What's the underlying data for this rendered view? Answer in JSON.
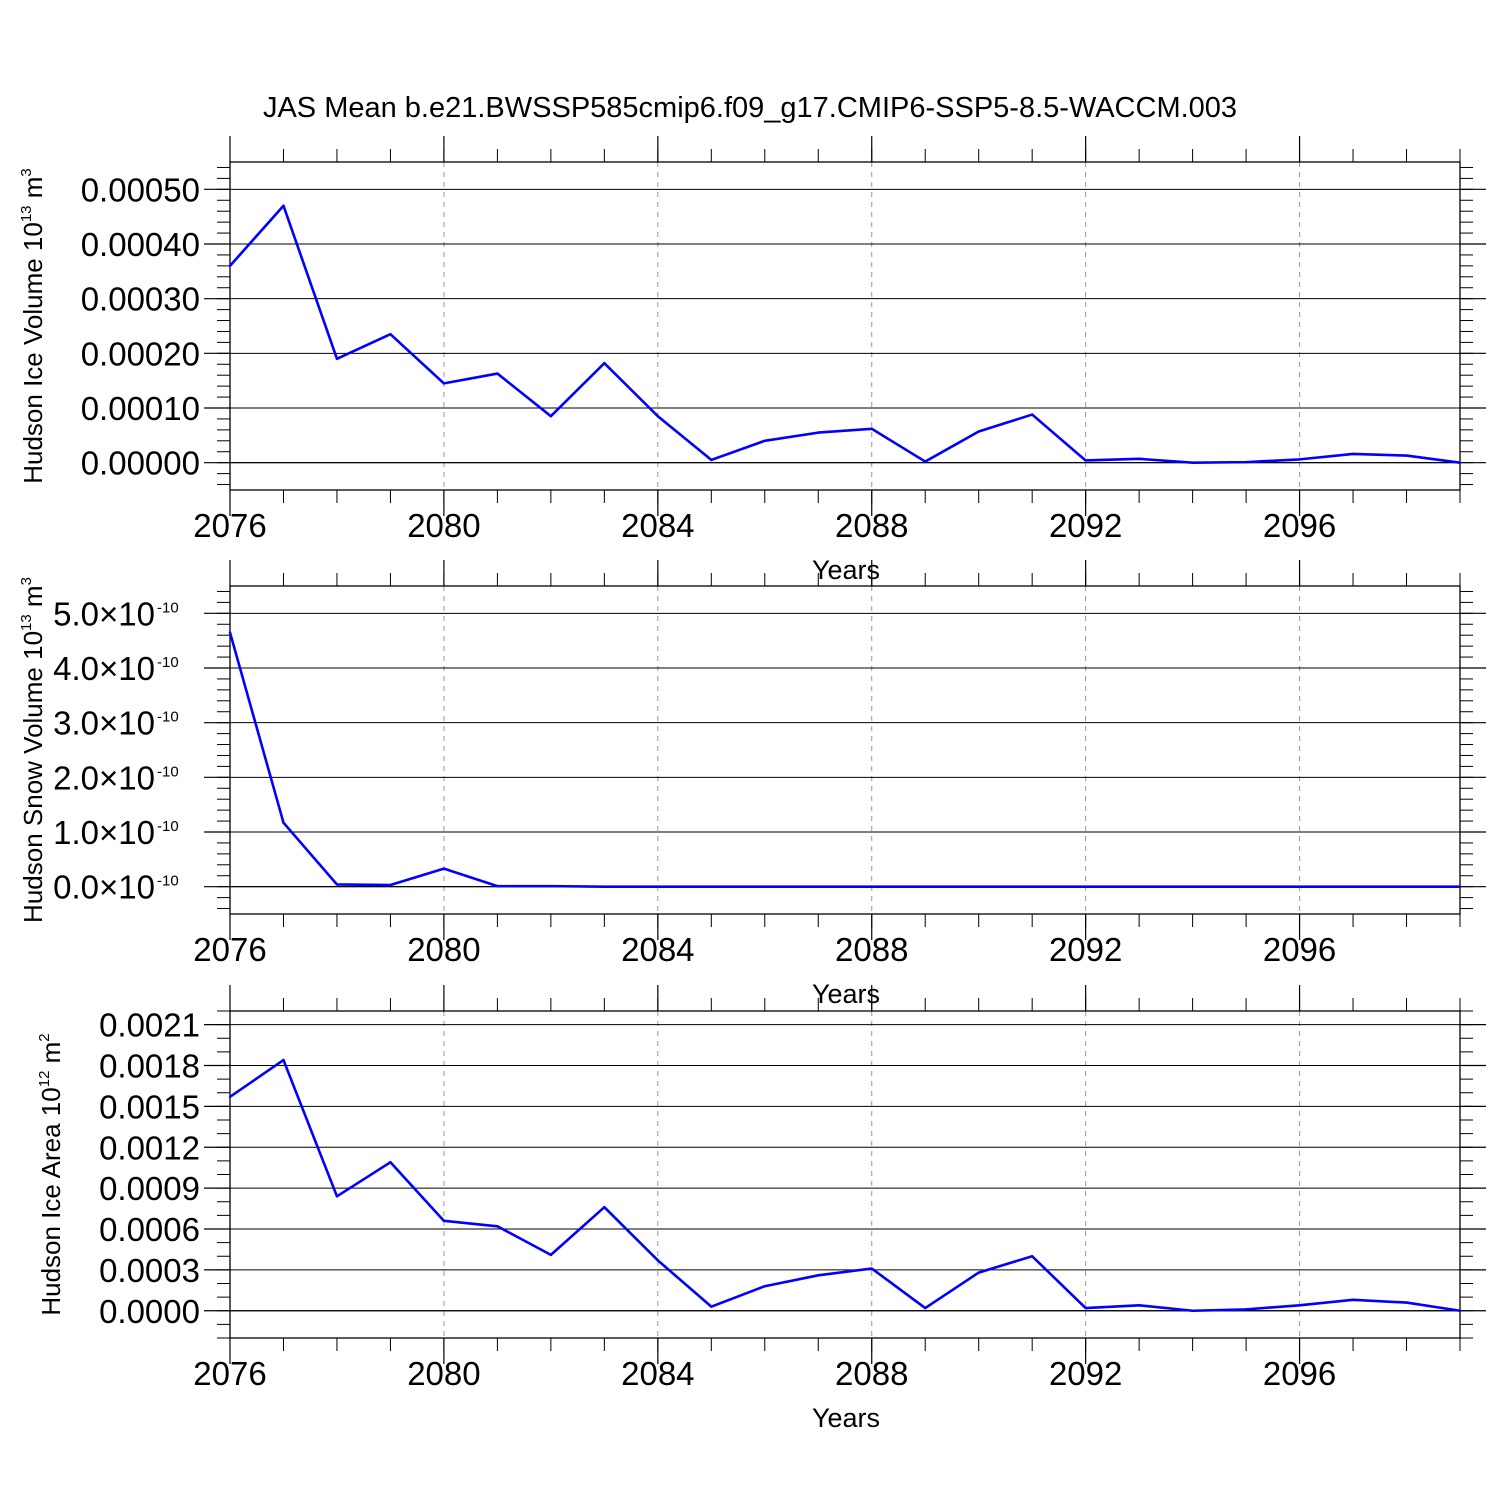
{
  "figure_title": "JAS Mean b.e21.BWSSP585cmip6.f09_g17.CMIP6-SSP5-8.5-WACCM.003",
  "chart_data": [
    {
      "type": "line",
      "ylabel": "Hudson Ice Volume 10",
      "ylabel_exp": "13",
      "ylabel_unit": " m",
      "ylabel_unit_exp": "3",
      "xlabel": "Years",
      "xlim": [
        2076,
        2099
      ],
      "ylim": [
        -5e-05,
        0.00055
      ],
      "x_ticks": [
        2076,
        2080,
        2084,
        2088,
        2092,
        2096
      ],
      "x_tick_labels": [
        "2076",
        "2080",
        "2084",
        "2088",
        "2092",
        "2096"
      ],
      "y_ticks": [
        0,
        0.0001,
        0.0002,
        0.0003,
        0.0004,
        0.0005
      ],
      "y_tick_labels": [
        "0.00000",
        "0.00010",
        "0.00020",
        "0.00030",
        "0.00040",
        "0.00050"
      ],
      "y_tick_exp": "",
      "x_minor_step": 1,
      "y_minor_step": 2e-05,
      "grid": "vertical-dashed",
      "line_color": "#0000ff",
      "x": [
        2076,
        2077,
        2078,
        2079,
        2080,
        2081,
        2082,
        2083,
        2084,
        2085,
        2086,
        2087,
        2088,
        2089,
        2090,
        2091,
        2092,
        2093,
        2094,
        2095,
        2096,
        2097,
        2098,
        2099
      ],
      "y": [
        0.00036,
        0.00047,
        0.00019,
        0.000235,
        0.000145,
        0.000163,
        8.5e-05,
        0.000182,
        8.5e-05,
        5e-06,
        4e-05,
        5.5e-05,
        6.2e-05,
        2e-06,
        5.7e-05,
        8.8e-05,
        4e-06,
        7e-06,
        0.0,
        1e-06,
        6e-06,
        1.6e-05,
        1.3e-05,
        0.0
      ]
    },
    {
      "type": "line",
      "ylabel": "Hudson Snow Volume 10",
      "ylabel_exp": "13",
      "ylabel_unit": " m",
      "ylabel_unit_exp": "3",
      "xlabel": "Years",
      "xlim": [
        2076,
        2099
      ],
      "ylim": [
        -0.5,
        5.5
      ],
      "x_ticks": [
        2076,
        2080,
        2084,
        2088,
        2092,
        2096
      ],
      "x_tick_labels": [
        "2076",
        "2080",
        "2084",
        "2088",
        "2092",
        "2096"
      ],
      "y_ticks": [
        0,
        1,
        2,
        3,
        4,
        5
      ],
      "y_tick_labels": [
        "0.0×10",
        "1.0×10",
        "2.0×10",
        "3.0×10",
        "4.0×10",
        "5.0×10"
      ],
      "y_tick_exp": "-10",
      "x_minor_step": 1,
      "y_minor_step": 0.2,
      "grid": "vertical-dashed",
      "line_color": "#0000ff",
      "x": [
        2076,
        2077,
        2078,
        2079,
        2080,
        2081,
        2082,
        2083,
        2084,
        2085,
        2086,
        2087,
        2088,
        2089,
        2090,
        2091,
        2092,
        2093,
        2094,
        2095,
        2096,
        2097,
        2098,
        2099
      ],
      "y": [
        4.65,
        1.17,
        0.04,
        0.03,
        0.33,
        0.01,
        0.01,
        0.0,
        0.0,
        0.0,
        0.0,
        0.0,
        0.0,
        0.0,
        0.0,
        0.0,
        0.0,
        0.0,
        0.0,
        0.0,
        0.0,
        0.0,
        0.0,
        0.0
      ]
    },
    {
      "type": "line",
      "ylabel": "Hudson Ice Area 10",
      "ylabel_exp": "12",
      "ylabel_unit": " m",
      "ylabel_unit_exp": "2",
      "xlabel": "Years",
      "xlim": [
        2076,
        2099
      ],
      "ylim": [
        -0.0002,
        0.0022
      ],
      "x_ticks": [
        2076,
        2080,
        2084,
        2088,
        2092,
        2096
      ],
      "x_tick_labels": [
        "2076",
        "2080",
        "2084",
        "2088",
        "2092",
        "2096"
      ],
      "y_ticks": [
        0,
        0.0003,
        0.0006,
        0.0009,
        0.0012,
        0.0015,
        0.0018,
        0.0021
      ],
      "y_tick_labels": [
        "0.0000",
        "0.0003",
        "0.0006",
        "0.0009",
        "0.0012",
        "0.0015",
        "0.0018",
        "0.0021"
      ],
      "y_tick_exp": "",
      "x_minor_step": 1,
      "y_minor_step": 0.0001,
      "grid": "vertical-dashed",
      "line_color": "#0000ff",
      "x": [
        2076,
        2077,
        2078,
        2079,
        2080,
        2081,
        2082,
        2083,
        2084,
        2085,
        2086,
        2087,
        2088,
        2089,
        2090,
        2091,
        2092,
        2093,
        2094,
        2095,
        2096,
        2097,
        2098,
        2099
      ],
      "y": [
        0.00157,
        0.00184,
        0.00084,
        0.00109,
        0.00066,
        0.00062,
        0.00041,
        0.00076,
        0.00037,
        3e-05,
        0.00018,
        0.00026,
        0.00031,
        2e-05,
        0.00028,
        0.0004,
        2e-05,
        4e-05,
        0.0,
        1e-05,
        4e-05,
        8e-05,
        6e-05,
        0.0
      ]
    }
  ]
}
